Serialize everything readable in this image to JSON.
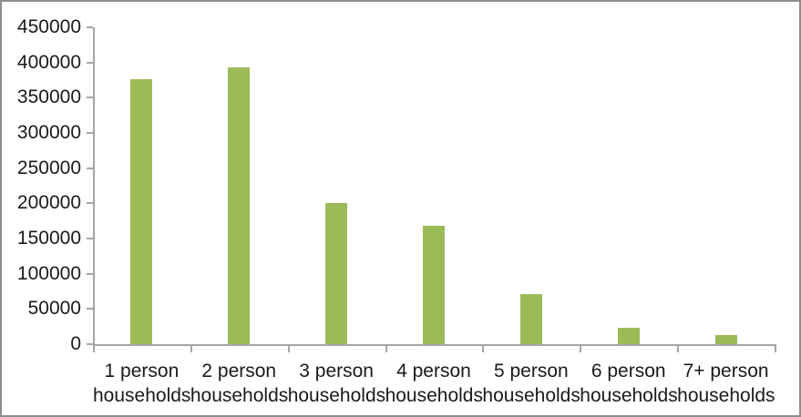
{
  "chart_data": {
    "type": "bar",
    "title": "",
    "xlabel": "",
    "ylabel": "",
    "categories": [
      "1 person households",
      "2 person households",
      "3 person households",
      "4 person households",
      "5 person households",
      "6 person households",
      "7+ person households"
    ],
    "categories_line1": [
      "1 person",
      "2 person",
      "3 person",
      "4 person",
      "5 person",
      "6 person",
      "7+ person"
    ],
    "categories_line2": "households",
    "values": [
      376000,
      393000,
      200000,
      168000,
      71000,
      23000,
      13000
    ],
    "ylim": [
      0,
      450000
    ],
    "ytick_step": 50000,
    "ytick_labels": [
      "0",
      "50000",
      "100000",
      "150000",
      "200000",
      "250000",
      "300000",
      "350000",
      "400000",
      "450000"
    ],
    "grid": false,
    "legend": null,
    "bar_color": "#9bbb59",
    "axis_color": "#a6a6a6",
    "text_color": "#1a1a1a",
    "frame_border_color": "#8e8e8e",
    "background": "#ffffff"
  }
}
